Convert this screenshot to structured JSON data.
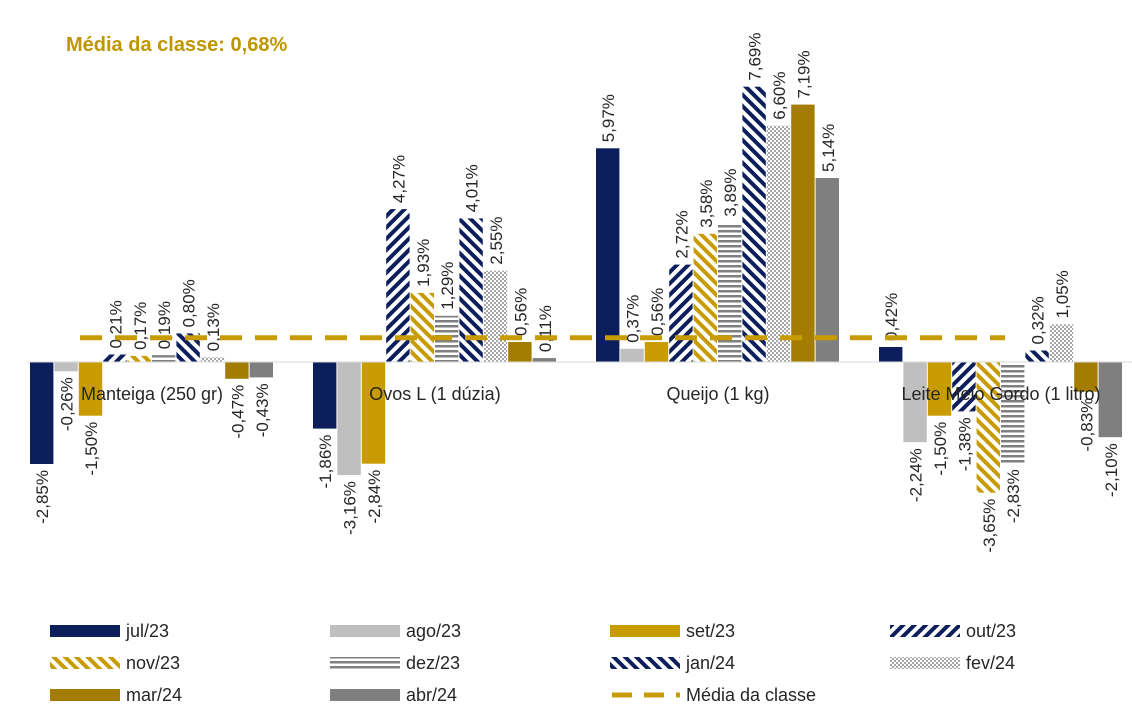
{
  "title": "Média da classe: 0,68%",
  "chart_data": {
    "type": "bar",
    "categories": [
      "Manteiga (250 gr)",
      "Ovos L  (1 dúzia)",
      "Queijo (1 kg)",
      "Leite Meio Gordo (1 litro)"
    ],
    "series": [
      {
        "name": "jul/23",
        "color": "#0c1f5c",
        "pattern": "solid",
        "values": [
          -2.85,
          -1.86,
          5.97,
          0.42
        ]
      },
      {
        "name": "ago/23",
        "color": "#bfbfbf",
        "pattern": "solid",
        "values": [
          -0.26,
          -3.16,
          0.37,
          -2.24
        ]
      },
      {
        "name": "set/23",
        "color": "#c89b00",
        "pattern": "solid",
        "values": [
          -1.5,
          -2.84,
          0.56,
          -1.5
        ]
      },
      {
        "name": "out/23",
        "color": "#0c1f5c",
        "pattern": "diag-up",
        "values": [
          0.21,
          4.27,
          2.72,
          -1.38
        ]
      },
      {
        "name": "nov/23",
        "color": "#c89b00",
        "pattern": "diag-down",
        "values": [
          0.17,
          1.93,
          3.58,
          -3.65
        ]
      },
      {
        "name": "dez/23",
        "color": "#7f7f7f",
        "pattern": "horiz",
        "values": [
          0.19,
          1.29,
          3.89,
          -2.83
        ]
      },
      {
        "name": "jan/24",
        "color": "#0c1f5c",
        "pattern": "diag-down",
        "values": [
          0.8,
          4.01,
          7.69,
          0.32
        ]
      },
      {
        "name": "fev/24",
        "color": "#a6a6a6",
        "pattern": "checker",
        "values": [
          0.13,
          2.55,
          6.6,
          1.05
        ]
      },
      {
        "name": "mar/24",
        "color": "#a37c00",
        "pattern": "solid",
        "values": [
          -0.47,
          0.56,
          7.19,
          -0.83
        ]
      },
      {
        "name": "abr/24",
        "color": "#7f7f7f",
        "pattern": "solid",
        "values": [
          -0.43,
          0.11,
          5.14,
          -2.1
        ]
      }
    ],
    "average": {
      "name": "Média da classe",
      "value": 0.68,
      "color": "#c89b00",
      "style": "dashed"
    },
    "legend_position": "bottom",
    "grid": false,
    "ylim": [
      -4.5,
      9.5
    ]
  }
}
